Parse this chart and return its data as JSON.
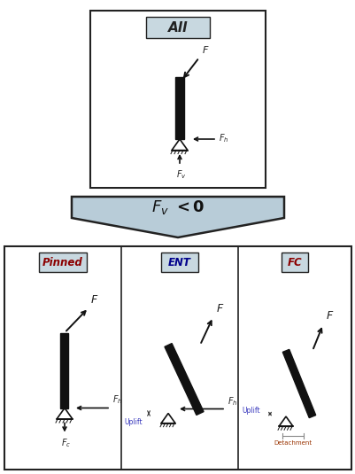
{
  "bg_color": "#ffffff",
  "box_color": "#c8d8e0",
  "box_edge_color": "#222222",
  "pile_color": "#111111",
  "triangle_color": "#111111",
  "chevron_color": "#b8ccd8",
  "chevron_edge": "#222222",
  "title_top": "All",
  "fv_label": "$\\mathbf{F_v < 0}$",
  "panel_titles": [
    "Pinned",
    "ENT",
    "FC"
  ],
  "pinned_title_color": "#8b0000",
  "ent_title_color": "#00008b",
  "fc_title_color": "#8b0000",
  "uplift_color": "#3333bb",
  "detachment_color": "#993300"
}
